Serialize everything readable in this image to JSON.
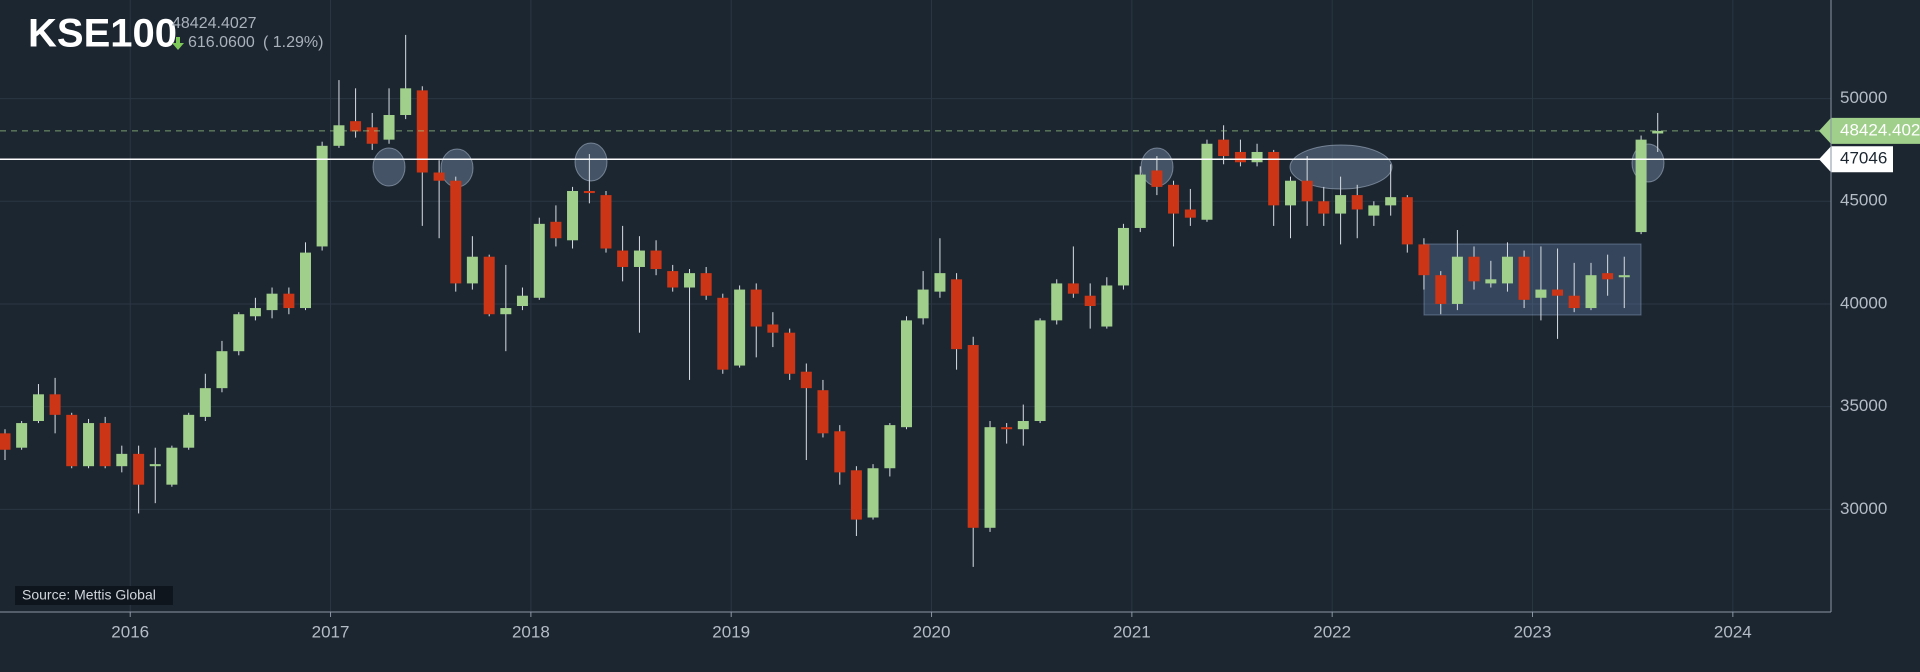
{
  "chart_data": {
    "type": "candlestick",
    "title": "KSE100",
    "last_price": "48424.4027",
    "change": "616.0600",
    "change_pct": "( 1.29%)",
    "source": "Source: Mettis Global",
    "price_line": {
      "value": 48424.4027,
      "label": "48424.402"
    },
    "level_line": 47046,
    "up_color": "#9fcf8a",
    "down_color": "#cc3516",
    "xlim": [
      2015.35,
      2024.49
    ],
    "xticks": [
      2016,
      2017,
      2018,
      2019,
      2020,
      2021,
      2022,
      2023,
      2024
    ],
    "ylim": [
      25000,
      54800
    ],
    "yticks": [
      30000,
      35000,
      40000,
      45000,
      50000
    ],
    "grid": true,
    "x": [
      2015.375,
      2015.458,
      2015.542,
      2015.625,
      2015.708,
      2015.792,
      2015.875,
      2015.958,
      2016.042,
      2016.125,
      2016.208,
      2016.292,
      2016.375,
      2016.458,
      2016.542,
      2016.625,
      2016.708,
      2016.792,
      2016.875,
      2016.958,
      2017.042,
      2017.125,
      2017.208,
      2017.292,
      2017.375,
      2017.458,
      2017.542,
      2017.625,
      2017.708,
      2017.792,
      2017.875,
      2017.958,
      2018.042,
      2018.125,
      2018.208,
      2018.292,
      2018.375,
      2018.458,
      2018.542,
      2018.625,
      2018.708,
      2018.792,
      2018.875,
      2018.958,
      2019.042,
      2019.125,
      2019.208,
      2019.292,
      2019.375,
      2019.458,
      2019.542,
      2019.625,
      2019.708,
      2019.792,
      2019.875,
      2019.958,
      2020.042,
      2020.125,
      2020.208,
      2020.292,
      2020.375,
      2020.458,
      2020.542,
      2020.625,
      2020.708,
      2020.792,
      2020.875,
      2020.958,
      2021.042,
      2021.125,
      2021.208,
      2021.292,
      2021.375,
      2021.458,
      2021.542,
      2021.625,
      2021.708,
      2021.792,
      2021.875,
      2021.958,
      2022.042,
      2022.125,
      2022.208,
      2022.292,
      2022.375,
      2022.458,
      2022.542,
      2022.625,
      2022.708,
      2022.792,
      2022.875,
      2022.958,
      2023.042,
      2023.125,
      2023.208,
      2023.292,
      2023.375,
      2023.458,
      2023.542,
      2023.625
    ],
    "open": [
      33700,
      33000,
      34300,
      35600,
      34600,
      32100,
      34200,
      32100,
      32700,
      32100,
      31200,
      33000,
      34500,
      35900,
      37700,
      39400,
      39700,
      40500,
      39800,
      42800,
      47700,
      48900,
      48600,
      48000,
      49200,
      50400,
      46400,
      46000,
      41000,
      42300,
      39500,
      39900,
      40300,
      44000,
      43100,
      45500,
      45300,
      42600,
      41800,
      42600,
      41600,
      40800,
      41500,
      40300,
      37000,
      40700,
      39000,
      38600,
      36700,
      35800,
      33800,
      31900,
      29600,
      32000,
      34000,
      39300,
      40600,
      41200,
      38000,
      29100,
      34000,
      33900,
      34300,
      39200,
      41000,
      40400,
      38900,
      40900,
      43700,
      46500,
      45800,
      44600,
      44100,
      48000,
      47400,
      46900,
      47400,
      44800,
      46000,
      45000,
      44400,
      45300,
      44300,
      44800,
      45200,
      42900,
      41400,
      40000,
      42300,
      41000,
      41000,
      42300,
      40300,
      40700,
      40400,
      39800,
      41500,
      41300,
      43500,
      48300
    ],
    "high": [
      33900,
      34300,
      36100,
      36400,
      34700,
      34400,
      34500,
      33100,
      33100,
      33000,
      33100,
      34700,
      36600,
      38200,
      39600,
      40300,
      40800,
      40800,
      43000,
      47900,
      50900,
      50500,
      49300,
      50500,
      53100,
      50600,
      47000,
      46200,
      43300,
      42400,
      41900,
      40800,
      44200,
      44800,
      45700,
      47300,
      45500,
      43800,
      43300,
      43100,
      41900,
      41700,
      41800,
      40500,
      40900,
      41000,
      39600,
      38800,
      37100,
      36300,
      34100,
      32100,
      32200,
      34200,
      39400,
      41600,
      43200,
      41500,
      38400,
      34300,
      34200,
      35100,
      39300,
      41200,
      42800,
      41000,
      41300,
      43900,
      46700,
      47200,
      46000,
      45600,
      48000,
      48700,
      48000,
      47800,
      47500,
      46200,
      47200,
      45700,
      46200,
      45800,
      45000,
      46800,
      45300,
      43200,
      41600,
      43600,
      42800,
      42100,
      43000,
      42600,
      42800,
      42700,
      42000,
      42000,
      42400,
      42300,
      48200,
      49300
    ],
    "low": [
      32400,
      32900,
      34200,
      33700,
      32000,
      32000,
      32000,
      31800,
      29800,
      30300,
      31100,
      32900,
      34300,
      35700,
      37500,
      39200,
      39300,
      39500,
      39700,
      42600,
      47600,
      48100,
      47500,
      47800,
      49000,
      43800,
      43200,
      40600,
      40700,
      39400,
      37700,
      39700,
      40200,
      42800,
      42700,
      44900,
      42500,
      41100,
      38600,
      41400,
      40600,
      36300,
      40200,
      36600,
      36900,
      37400,
      37900,
      36300,
      32400,
      33500,
      31200,
      28700,
      29500,
      31600,
      33900,
      39000,
      40300,
      36800,
      27200,
      28900,
      33200,
      33100,
      34200,
      39000,
      40300,
      38800,
      38800,
      40700,
      43500,
      45300,
      42800,
      43800,
      44000,
      46800,
      46700,
      46700,
      43800,
      43200,
      43800,
      43800,
      42900,
      43200,
      43800,
      44300,
      42500,
      40700,
      39500,
      39700,
      40700,
      40800,
      40600,
      39800,
      39200,
      38300,
      39600,
      39700,
      40400,
      39800,
      43400,
      47400
    ],
    "close": [
      32900,
      34200,
      35600,
      34600,
      32100,
      34200,
      32100,
      32700,
      31200,
      32200,
      33000,
      34600,
      35900,
      37700,
      39500,
      39800,
      40500,
      39800,
      42500,
      47700,
      48700,
      48400,
      47800,
      49200,
      50500,
      46400,
      46000,
      41000,
      42300,
      39500,
      39800,
      40400,
      43900,
      43200,
      45500,
      45400,
      42700,
      41800,
      42600,
      41700,
      40800,
      41500,
      40400,
      36800,
      40700,
      38900,
      38600,
      36600,
      35900,
      33700,
      31800,
      29500,
      32000,
      34100,
      39200,
      40700,
      41500,
      37800,
      29100,
      34000,
      33900,
      34300,
      39200,
      41000,
      40500,
      39900,
      40900,
      43700,
      46300,
      45700,
      44400,
      44200,
      47800,
      47200,
      46900,
      47400,
      44800,
      46000,
      45000,
      44400,
      45300,
      44600,
      44800,
      45200,
      42900,
      41400,
      40000,
      42300,
      41100,
      41200,
      42300,
      40200,
      40700,
      40400,
      39800,
      41400,
      41200,
      41400,
      48000,
      48424
    ]
  }
}
